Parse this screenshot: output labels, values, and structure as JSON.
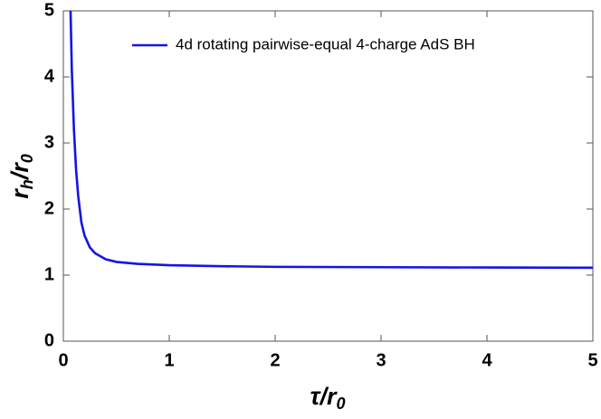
{
  "chart_data": {
    "type": "line",
    "xlabel": [
      {
        "text": "τ/r",
        "sub": false
      },
      {
        "text": "0",
        "sub": true
      }
    ],
    "ylabel": [
      {
        "text": "r",
        "sub": false
      },
      {
        "text": "h",
        "sub": true
      },
      {
        "text": "/r",
        "sub": false
      },
      {
        "text": "0",
        "sub": true
      }
    ],
    "x": [
      0.068,
      0.08,
      0.1,
      0.12,
      0.14,
      0.17,
      0.2,
      0.25,
      0.3,
      0.4,
      0.5,
      0.7,
      1,
      1.5,
      2,
      3,
      4,
      5
    ],
    "series": [
      {
        "name": "4d rotating pairwise-equal 4-charge AdS BH",
        "color": "#1414e6",
        "values": [
          5,
          4.1,
          3.2,
          2.6,
          2.2,
          1.8,
          1.6,
          1.42,
          1.33,
          1.24,
          1.2,
          1.17,
          1.15,
          1.135,
          1.125,
          1.12,
          1.115,
          1.112
        ]
      }
    ],
    "xlim": [
      0,
      5
    ],
    "ylim": [
      0,
      5
    ],
    "xticks": [
      0,
      1,
      2,
      3,
      4,
      5
    ],
    "yticks": [
      0,
      1,
      2,
      3,
      4,
      5
    ],
    "legend": "top-right"
  }
}
